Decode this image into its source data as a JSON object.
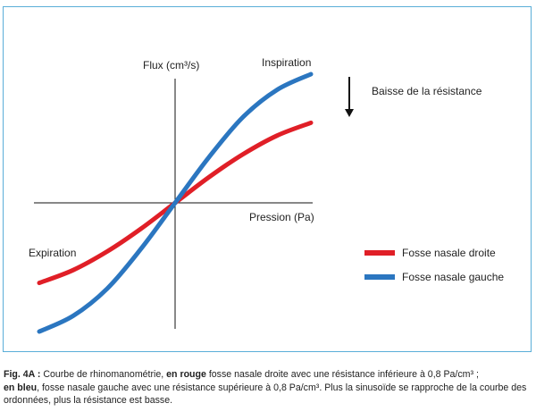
{
  "chart_data": {
    "type": "line",
    "title": "",
    "xlabel": "Pression (Pa)",
    "ylabel": "Flux (cm³/s)",
    "xlim": [
      -1,
      1
    ],
    "ylim": [
      -1,
      1
    ],
    "grid": false,
    "legend_position": "bottom-right",
    "annotations": {
      "inspiration": "Inspiration",
      "expiration": "Expiration",
      "resistance_note": "Baisse de la résistance"
    },
    "series": [
      {
        "name": "Fosse nasale droite",
        "color": "#e01f27",
        "x": [
          -1,
          -0.75,
          -0.5,
          -0.25,
          0,
          0.25,
          0.5,
          0.75,
          1
        ],
        "y": [
          -0.56,
          -0.47,
          -0.34,
          -0.18,
          0,
          0.18,
          0.34,
          0.47,
          0.56
        ]
      },
      {
        "name": "Fosse nasale gauche",
        "color": "#2b76c0",
        "x": [
          -1,
          -0.75,
          -0.5,
          -0.25,
          0,
          0.25,
          0.5,
          0.75,
          1
        ],
        "y": [
          -0.9,
          -0.79,
          -0.6,
          -0.32,
          0,
          0.32,
          0.6,
          0.79,
          0.9
        ]
      }
    ]
  },
  "caption": {
    "fig": "Fig. 4A :",
    "t1": " Courbe de rhinomanométrie, ",
    "red": "en rouge",
    "t2": " fosse nasale droite avec une résistance inférieure à 0,8 Pa/cm³ ;",
    "blue": "en bleu",
    "t3": ", fosse nasale gauche avec une résistance supérieure à 0,8 Pa/cm³. Plus la sinusoïde se rapproche de la courbe des ordonnées, plus la résistance est basse."
  }
}
